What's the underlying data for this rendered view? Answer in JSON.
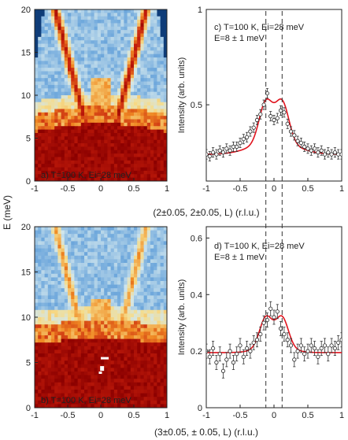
{
  "chart_data": [
    {
      "id": "a",
      "type": "heatmap",
      "panel_label": "a) T=100 K, Ei=28 meV",
      "x_ticks": [
        "-1",
        "-0.5",
        "0",
        "0.5",
        "1"
      ],
      "y_ticks": [
        "0",
        "5",
        "10",
        "15",
        "20"
      ],
      "xlim": [
        -1,
        1
      ],
      "ylim": [
        0,
        20
      ],
      "colormap": [
        "#08306b",
        "#2b6cb0",
        "#6fa8dc",
        "#d0e6ee",
        "#f6dc8a",
        "#f08a24",
        "#c61e0c",
        "#8b0000"
      ],
      "dispersion_branch_velocity_meV_per_rlu": 29,
      "elastic_region_top_meV": 5.5
    },
    {
      "id": "c",
      "type": "scatter",
      "panel_label_lines": [
        "c) T=100 K, Ei=28 meV",
        "E=8 ± 1 meV"
      ],
      "x_ticks": [
        "-1",
        "-0.5",
        "0",
        "0.5",
        "1"
      ],
      "y_ticks": [
        "0.5",
        "1"
      ],
      "xlim": [
        -1,
        1
      ],
      "ylim": [
        0.1,
        1.0
      ],
      "ylabel": "Intensity (arb. units)",
      "dashed_lines_x": [
        -0.12,
        0.12
      ],
      "x": [
        -1.0,
        -0.95,
        -0.9,
        -0.85,
        -0.8,
        -0.75,
        -0.7,
        -0.65,
        -0.6,
        -0.55,
        -0.5,
        -0.45,
        -0.4,
        -0.35,
        -0.3,
        -0.25,
        -0.2,
        -0.15,
        -0.1,
        -0.05,
        0.0,
        0.05,
        0.1,
        0.15,
        0.2,
        0.25,
        0.3,
        0.35,
        0.4,
        0.45,
        0.5,
        0.55,
        0.6,
        0.65,
        0.7,
        0.75,
        0.8,
        0.85,
        0.9,
        0.95,
        1.0
      ],
      "y": [
        0.24,
        0.23,
        0.25,
        0.24,
        0.26,
        0.25,
        0.27,
        0.26,
        0.28,
        0.28,
        0.3,
        0.32,
        0.33,
        0.36,
        0.38,
        0.42,
        0.45,
        0.5,
        0.56,
        0.44,
        0.42,
        0.43,
        0.47,
        0.46,
        0.4,
        0.36,
        0.34,
        0.31,
        0.3,
        0.28,
        0.27,
        0.26,
        0.27,
        0.25,
        0.26,
        0.24,
        0.25,
        0.24,
        0.25,
        0.24,
        0.24
      ],
      "yerr": 0.025,
      "fit_color": "#e0141e"
    },
    {
      "id": "b",
      "type": "heatmap",
      "panel_label": "b) T=100 K, Ei=28 meV",
      "x_ticks": [
        "-1",
        "-0.5",
        "0",
        "0.5",
        "1"
      ],
      "y_ticks": [
        "0",
        "5",
        "10",
        "15",
        "20"
      ],
      "xlim": [
        -1,
        1
      ],
      "ylim": [
        0,
        20
      ],
      "elastic_region_top_meV": 7
    },
    {
      "id": "d",
      "type": "scatter",
      "panel_label_lines": [
        "d) T=100 K, Ei=28 meV",
        "E=8 ± 1 meV"
      ],
      "x_ticks": [
        "-1",
        "-0.5",
        "0",
        "0.5",
        "1"
      ],
      "y_ticks": [
        "0",
        "0.2",
        "0.4",
        "0.6"
      ],
      "xlim": [
        -1,
        1
      ],
      "ylim": [
        0,
        0.64
      ],
      "ylabel": "Intensity (arb. units)",
      "dashed_lines_x": [
        -0.12,
        0.12
      ],
      "x": [
        -1.0,
        -0.95,
        -0.9,
        -0.85,
        -0.8,
        -0.75,
        -0.7,
        -0.65,
        -0.6,
        -0.55,
        -0.5,
        -0.45,
        -0.4,
        -0.35,
        -0.3,
        -0.25,
        -0.2,
        -0.15,
        -0.1,
        -0.05,
        0.0,
        0.05,
        0.1,
        0.15,
        0.2,
        0.25,
        0.3,
        0.35,
        0.4,
        0.45,
        0.5,
        0.55,
        0.6,
        0.65,
        0.7,
        0.75,
        0.8,
        0.85,
        0.9,
        0.95,
        1.0
      ],
      "y": [
        0.2,
        0.18,
        0.21,
        0.16,
        0.19,
        0.13,
        0.17,
        0.2,
        0.16,
        0.19,
        0.22,
        0.18,
        0.21,
        0.2,
        0.23,
        0.24,
        0.26,
        0.3,
        0.31,
        0.35,
        0.32,
        0.34,
        0.28,
        0.26,
        0.24,
        0.22,
        0.17,
        0.2,
        0.22,
        0.19,
        0.2,
        0.22,
        0.21,
        0.18,
        0.21,
        0.22,
        0.19,
        0.22,
        0.21,
        0.23,
        0.24
      ],
      "yerr": 0.025,
      "fit_color": "#e0141e"
    }
  ],
  "shared": {
    "ylabel_maps": "E (meV)",
    "xlabel_top": "(2±0.05, 2±0.05, L) (r.l.u.)",
    "xlabel_bottom": "(3±0.05, ± 0.05, L) (r.l.u.)"
  }
}
